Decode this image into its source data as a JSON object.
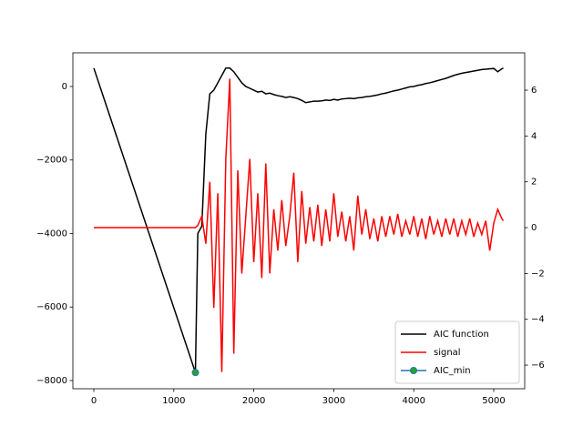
{
  "chart_data": {
    "type": "line",
    "x": [
      0,
      1270,
      1300,
      1350,
      1400,
      1450,
      1500,
      1550,
      1600,
      1650,
      1700,
      1750,
      1800,
      1850,
      1900,
      1950,
      2000,
      2050,
      2100,
      2150,
      2200,
      2250,
      2300,
      2350,
      2400,
      2450,
      2500,
      2550,
      2600,
      2650,
      2700,
      2750,
      2800,
      2850,
      2900,
      2950,
      3000,
      3050,
      3100,
      3150,
      3200,
      3250,
      3300,
      3350,
      3400,
      3450,
      3500,
      3550,
      3600,
      3650,
      3700,
      3750,
      3800,
      3850,
      3900,
      3950,
      4000,
      4050,
      4100,
      4150,
      4200,
      4250,
      4300,
      4350,
      4400,
      4450,
      4500,
      4550,
      4600,
      4650,
      4700,
      4750,
      4800,
      4850,
      4900,
      4950,
      5000,
      5050,
      5100,
      5120
    ],
    "series": [
      {
        "name": "AIC function",
        "color": "#000000",
        "values": [
          500,
          -7780,
          -4000,
          -3800,
          -1300,
          -200,
          -100,
          100,
          300,
          500,
          500,
          400,
          250,
          100,
          0,
          -50,
          -100,
          -150,
          -130,
          -200,
          -180,
          -220,
          -250,
          -270,
          -300,
          -280,
          -300,
          -330,
          -380,
          -440,
          -420,
          -400,
          -400,
          -390,
          -370,
          -380,
          -350,
          -370,
          -340,
          -330,
          -320,
          -330,
          -310,
          -300,
          -280,
          -270,
          -250,
          -230,
          -200,
          -180,
          -150,
          -120,
          -100,
          -70,
          -40,
          -10,
          0,
          30,
          50,
          80,
          100,
          130,
          160,
          190,
          220,
          260,
          300,
          330,
          360,
          380,
          400,
          420,
          440,
          460,
          470,
          480,
          490,
          400,
          480,
          500
        ]
      },
      {
        "name": "signal",
        "color": "#ff0000",
        "axis": "y2",
        "values": [
          0,
          0,
          0.1,
          0.5,
          -0.7,
          2.0,
          -3.5,
          1.5,
          -6.3,
          3.0,
          6.5,
          -5.5,
          2.5,
          -2.0,
          0.5,
          3.0,
          -1.5,
          1.5,
          -2.2,
          2.8,
          -2.0,
          0.8,
          -1.0,
          1.2,
          -0.8,
          0.5,
          2.4,
          -1.5,
          1.6,
          -0.7,
          0.9,
          -0.6,
          1.0,
          -0.8,
          0.8,
          -0.6,
          1.5,
          -0.4,
          0.7,
          -0.6,
          0.5,
          -1.0,
          1.4,
          -0.3,
          0.8,
          -0.5,
          0.4,
          -0.6,
          0.5,
          -0.4,
          0.5,
          -0.3,
          0.6,
          -0.4,
          0.3,
          -0.3,
          0.5,
          -0.4,
          0.4,
          -0.5,
          0.5,
          -0.3,
          0.3,
          -0.4,
          0.4,
          -0.3,
          0.4,
          -0.4,
          0.3,
          -0.3,
          0.4,
          -0.4,
          0.2,
          -0.3,
          0.3,
          -1.0,
          0.2,
          0.8,
          0.4,
          0.3
        ]
      },
      {
        "name": "AIC_min",
        "color": "#1f77b4",
        "marker_color": "#2ca02c",
        "x": [
          1270
        ],
        "values": [
          -7780
        ]
      }
    ],
    "xlim": [
      -262,
      5387
    ],
    "xticks": [
      0,
      1000,
      2000,
      3000,
      4000,
      5000
    ],
    "ylim": [
      -8223,
      916
    ],
    "yticks": [
      {
        "value": -8000,
        "label": "−8000"
      },
      {
        "value": -6000,
        "label": "−6000"
      },
      {
        "value": -4000,
        "label": "−4000"
      },
      {
        "value": -2000,
        "label": "−2000"
      },
      0
    ],
    "y2lim": [
      -7.03,
      7.63
    ],
    "y2ticks": [
      {
        "value": -6,
        "label": "−6"
      },
      {
        "value": -4,
        "label": "−4"
      },
      {
        "value": -2,
        "label": "−2"
      },
      0,
      2,
      4,
      6
    ],
    "legend": "lower right"
  }
}
